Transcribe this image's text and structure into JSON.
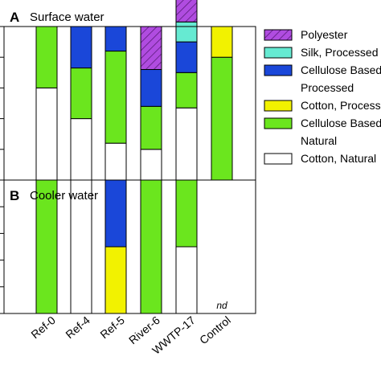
{
  "colors": {
    "Polyester": "#b04ce0",
    "Silk, Processed": "#66ead2",
    "Cellulose Based, Processed": "#1a47d9",
    "Cotton, Processed": "#f2f200",
    "Cellulose Based, Natural": "#6be61e",
    "Cotton, Natural": "#ffffff"
  },
  "chart_data": [
    {
      "panel_letter": "A",
      "title": "Surface water",
      "type": "bar",
      "stacked": true,
      "normalized": true,
      "ylim": [
        0,
        1
      ],
      "grid": false,
      "legend_position": "right",
      "categories": [
        "Ref-0",
        "Ref-4",
        "Ref-5",
        "River-6",
        "WWTP-17",
        "Control"
      ],
      "series": [
        {
          "name": "Cotton, Natural",
          "values": [
            0.6,
            0.4,
            0.24,
            0.2,
            0.47,
            0.0
          ]
        },
        {
          "name": "Cellulose Based, Natural",
          "values": [
            0.4,
            0.33,
            0.6,
            0.28,
            0.23,
            0.8
          ]
        },
        {
          "name": "Cotton, Processed",
          "values": [
            0.0,
            0.0,
            0.0,
            0.0,
            0.0,
            0.2
          ]
        },
        {
          "name": "Cellulose Based, Processed",
          "values": [
            0.0,
            0.27,
            0.16,
            0.24,
            0.2,
            0.0
          ]
        },
        {
          "name": "Silk, Processed",
          "values": [
            0.0,
            0.0,
            0.0,
            0.0,
            0.13,
            0.0
          ]
        },
        {
          "name": "Polyester",
          "values": [
            0.0,
            0.0,
            0.0,
            0.28,
            0.17,
            0.0
          ]
        }
      ]
    },
    {
      "panel_letter": "B",
      "title": "Cooler water",
      "type": "bar",
      "stacked": true,
      "normalized": true,
      "ylim": [
        0,
        1
      ],
      "grid": false,
      "categories": [
        "Ref-0",
        "Ref-4",
        "Ref-5",
        "River-6",
        "WWTP-17",
        "Control"
      ],
      "annotations": [
        {
          "category": "Control",
          "text": "nd"
        }
      ],
      "series": [
        {
          "name": "Cotton, Natural",
          "values": [
            0.0,
            1.0,
            0.0,
            0.0,
            0.5,
            0.0
          ]
        },
        {
          "name": "Cellulose Based, Natural",
          "values": [
            1.0,
            0.0,
            0.0,
            1.0,
            0.5,
            0.0
          ]
        },
        {
          "name": "Cotton, Processed",
          "values": [
            0.0,
            0.0,
            0.5,
            0.0,
            0.0,
            0.0
          ]
        },
        {
          "name": "Cellulose Based, Processed",
          "values": [
            0.0,
            0.0,
            0.5,
            0.0,
            0.0,
            0.0
          ]
        },
        {
          "name": "Silk, Processed",
          "values": [
            0.0,
            0.0,
            0.0,
            0.0,
            0.0,
            0.0
          ]
        },
        {
          "name": "Polyester",
          "values": [
            0.0,
            0.0,
            0.0,
            0.0,
            0.0,
            0.0
          ]
        }
      ]
    }
  ],
  "legend": [
    {
      "series": "Polyester",
      "lines": [
        "Polyester"
      ],
      "hatched": true
    },
    {
      "series": "Silk, Processed",
      "lines": [
        "Silk, Processed"
      ],
      "hatched": false
    },
    {
      "series": "Cellulose Based, Processed",
      "lines": [
        "Cellulose Based,",
        "Processed"
      ],
      "hatched": false
    },
    {
      "series": "Cotton, Processed",
      "lines": [
        "Cotton, Processed"
      ],
      "hatched": false
    },
    {
      "series": "Cellulose Based, Natural",
      "lines": [
        "Cellulose Based,",
        "Natural"
      ],
      "hatched": false
    },
    {
      "series": "Cotton, Natural",
      "lines": [
        "Cotton, Natural"
      ],
      "hatched": false
    }
  ]
}
